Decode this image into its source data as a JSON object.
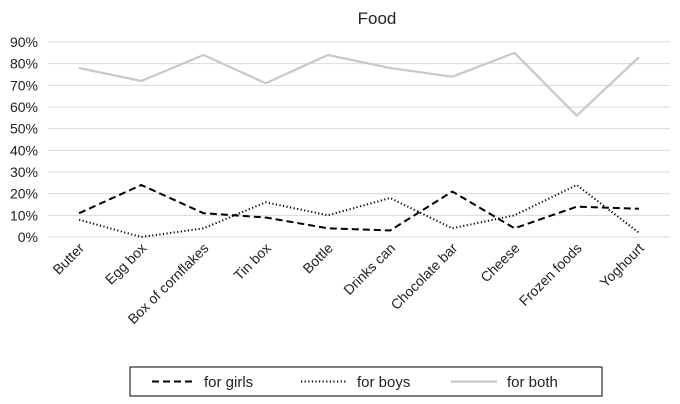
{
  "chart_data": {
    "type": "line",
    "title": "Food",
    "xlabel": "",
    "ylabel": "",
    "ylim": [
      0,
      90
    ],
    "y_ticks": [
      "0%",
      "10%",
      "20%",
      "30%",
      "40%",
      "50%",
      "60%",
      "70%",
      "80%",
      "90%"
    ],
    "grid": true,
    "legend_position": "bottom",
    "categories": [
      "Butter",
      "Egg box",
      "Box of cornflakes",
      "Tin box",
      "Bottle",
      "Drinks can",
      "Chocolate bar",
      "Cheese",
      "Frozen foods",
      "Yoghourt"
    ],
    "series": [
      {
        "name": "for girls",
        "style": "dashed",
        "color": "#000000",
        "values": [
          11,
          24,
          11,
          9,
          4,
          3,
          21,
          4,
          14,
          13
        ]
      },
      {
        "name": "for boys",
        "style": "dotted",
        "color": "#000000",
        "values": [
          8,
          0,
          4,
          16,
          10,
          18,
          4,
          10,
          24,
          2
        ]
      },
      {
        "name": "for both",
        "style": "solid",
        "color": "#c8c8c8",
        "values": [
          78,
          72,
          84,
          71,
          84,
          78,
          74,
          85,
          56,
          83
        ]
      }
    ]
  }
}
